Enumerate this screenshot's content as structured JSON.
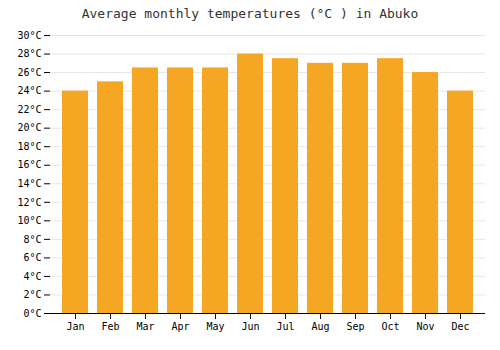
{
  "chart_data": {
    "type": "bar",
    "title": "Average monthly temperatures (°C ) in Abuko",
    "categories": [
      "Jan",
      "Feb",
      "Mar",
      "Apr",
      "May",
      "Jun",
      "Jul",
      "Aug",
      "Sep",
      "Oct",
      "Nov",
      "Dec"
    ],
    "values": [
      24,
      25,
      26.5,
      26.5,
      26.5,
      28,
      27.5,
      27,
      27,
      27.5,
      26,
      24
    ],
    "color": "#F5A623",
    "ylim": [
      0,
      30
    ],
    "yticks": [
      {
        "value": 0,
        "label": "0°C"
      },
      {
        "value": 2,
        "label": "2°C"
      },
      {
        "value": 4,
        "label": "4°C"
      },
      {
        "value": 6,
        "label": "6°C"
      },
      {
        "value": 8,
        "label": "8°C"
      },
      {
        "value": 10,
        "label": "10°C"
      },
      {
        "value": 12,
        "label": "12°C"
      },
      {
        "value": 14,
        "label": "14°C"
      },
      {
        "value": 16,
        "label": "16°C"
      },
      {
        "value": 18,
        "label": "18°C"
      },
      {
        "value": 20,
        "label": "20°C"
      },
      {
        "value": 22,
        "label": "22°C"
      },
      {
        "value": 24,
        "label": "24°C"
      },
      {
        "value": 26,
        "label": "26°C"
      },
      {
        "value": 28,
        "label": "28°C"
      },
      {
        "value": 30,
        "label": "30°C"
      }
    ],
    "grid": true
  }
}
